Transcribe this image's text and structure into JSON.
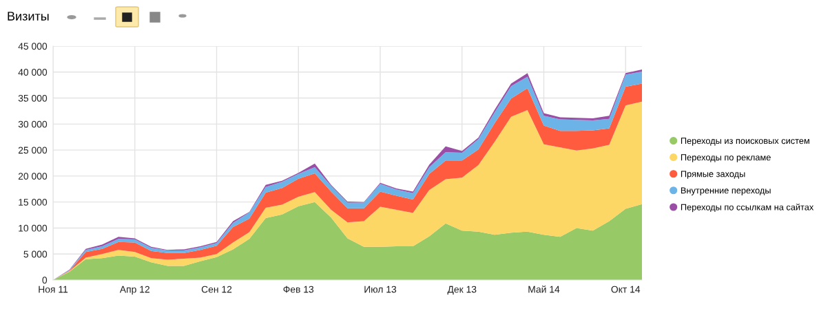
{
  "chart_data": {
    "type": "area",
    "title": "Визиты",
    "stacked": true,
    "categories": [
      "Ноя 11",
      null,
      null,
      null,
      null,
      "Апр 12",
      null,
      null,
      null,
      null,
      "Сен 12",
      null,
      null,
      null,
      null,
      "Фев 13",
      null,
      null,
      null,
      null,
      "Июл 13",
      null,
      null,
      null,
      null,
      "Дек 13",
      null,
      null,
      null,
      null,
      "Май 14",
      null,
      null,
      null,
      null,
      "Окт 14",
      null
    ],
    "series": [
      {
        "name": "Переходы из поисковых систем",
        "color": "#97c966",
        "values": [
          0,
          1600,
          4000,
          4200,
          4700,
          4500,
          3400,
          2700,
          2700,
          3600,
          4400,
          5900,
          7900,
          11900,
          12600,
          14200,
          15000,
          12000,
          8000,
          6400,
          6400,
          6500,
          6500,
          8400,
          10900,
          9500,
          9300,
          8700,
          9100,
          9300,
          8700,
          8300,
          10000,
          9500,
          11300,
          13700,
          14600
        ]
      },
      {
        "name": "Переходы по рекламе",
        "color": "#fdd766",
        "values": [
          0,
          100,
          300,
          800,
          1100,
          900,
          800,
          1200,
          1400,
          700,
          600,
          1300,
          1300,
          2000,
          1900,
          1800,
          1900,
          1500,
          3100,
          4900,
          7700,
          7000,
          6400,
          8900,
          8500,
          10200,
          12800,
          17900,
          22300,
          23400,
          17400,
          17200,
          14900,
          15800,
          14700,
          19900,
          19700
        ]
      },
      {
        "name": "Прямые заходы",
        "color": "#ff5c3f",
        "values": [
          0,
          100,
          1100,
          1000,
          1500,
          1800,
          1400,
          1300,
          1100,
          1500,
          1600,
          3000,
          2600,
          2900,
          3200,
          3500,
          3600,
          3500,
          2700,
          2500,
          2900,
          2700,
          2600,
          3100,
          3600,
          3300,
          3000,
          3600,
          3500,
          4200,
          3600,
          3200,
          3800,
          3500,
          3200,
          3600,
          3500
        ]
      },
      {
        "name": "Внутренние переходы",
        "color": "#6cb4e8",
        "values": [
          0,
          100,
          400,
          500,
          600,
          600,
          600,
          500,
          500,
          500,
          500,
          800,
          1200,
          1100,
          1200,
          900,
          1200,
          1100,
          1100,
          1100,
          1500,
          1200,
          1200,
          1300,
          1600,
          1500,
          2000,
          2100,
          2400,
          2200,
          1900,
          2200,
          2100,
          1900,
          1800,
          2300,
          2300
        ]
      },
      {
        "name": "Переходы по ссылкам на сайтах",
        "color": "#9b4ea6",
        "values": [
          0,
          100,
          200,
          300,
          400,
          200,
          200,
          100,
          200,
          200,
          200,
          300,
          100,
          400,
          200,
          200,
          700,
          200,
          200,
          100,
          200,
          200,
          300,
          500,
          1100,
          300,
          300,
          500,
          500,
          700,
          500,
          400,
          400,
          400,
          600,
          300,
          400
        ]
      }
    ],
    "ylim": [
      0,
      45000
    ],
    "yticks": [
      0,
      {
        "value": 5000,
        "label": "5 000"
      },
      {
        "value": 10000,
        "label": "10 000"
      },
      {
        "value": 15000,
        "label": "15 000"
      },
      {
        "value": 20000,
        "label": "20 000"
      },
      {
        "value": 25000,
        "label": "25 000"
      },
      {
        "value": 30000,
        "label": "30 000"
      },
      {
        "value": 35000,
        "label": "35 000"
      },
      {
        "value": 40000,
        "label": "40 000"
      },
      {
        "value": 45000,
        "label": "45 000"
      }
    ],
    "grid": true,
    "legend": "right"
  }
}
